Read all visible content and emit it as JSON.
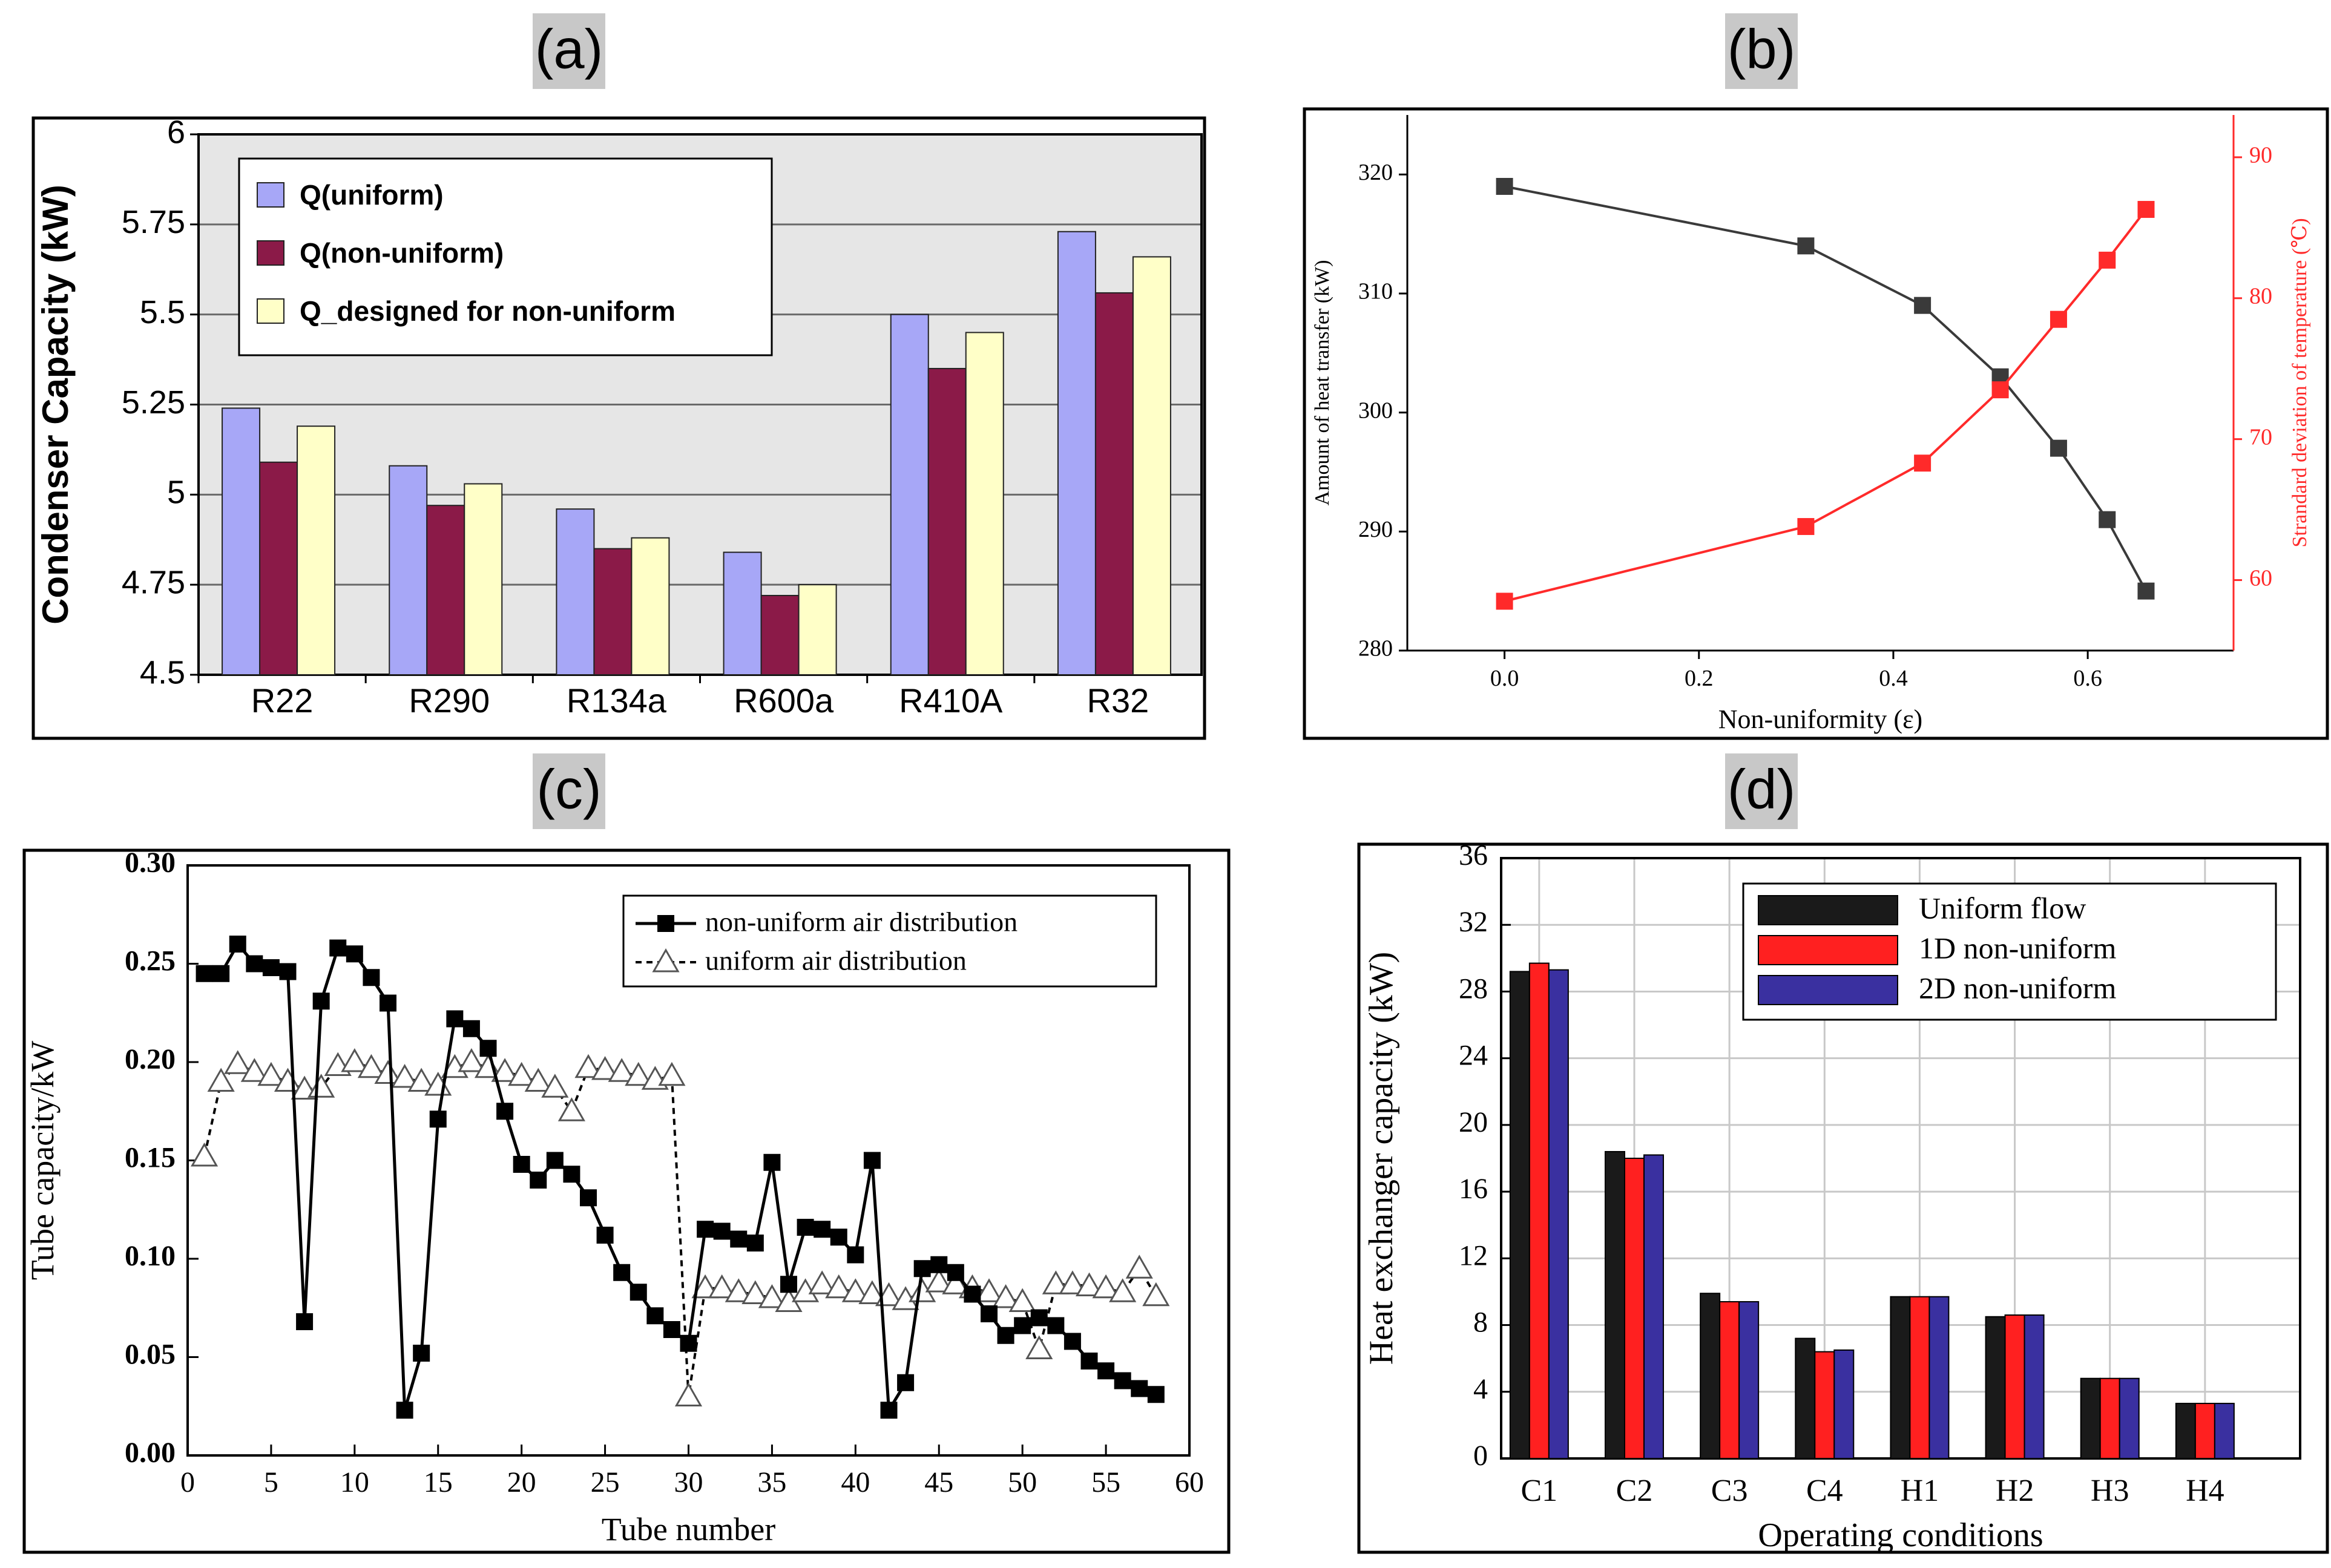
{
  "panels": {
    "a": {
      "label": "(a)"
    },
    "b": {
      "label": "(b)"
    },
    "c": {
      "label": "(c)"
    },
    "d": {
      "label": "(d)"
    }
  },
  "colors": {
    "label_bg": "#c8c8c8",
    "a_uniform": "#a7a7f7",
    "a_nonuniform": "#8b1a48",
    "a_designed": "#ffffc8",
    "a_plot_bg": "#e6e6e6",
    "b_heat": "#3a3a3a",
    "b_std": "#ff2a2a",
    "d_uniform": "#1a1a1a",
    "d_1d": "#ff2020",
    "d_2d": "#3a30a0"
  },
  "chart_data": [
    {
      "id": "a",
      "type": "bar",
      "title": "",
      "xlabel": "",
      "ylabel": "Condenser Capacity (kW)",
      "ylim": [
        4.5,
        6
      ],
      "yticks": [
        "4.5",
        "4.75",
        "5",
        "5.25",
        "5.5",
        "5.75",
        "6"
      ],
      "categories": [
        "R22",
        "R290",
        "R134a",
        "R600a",
        "R410A",
        "R32"
      ],
      "series": [
        {
          "name": "Q(uniform)",
          "values": [
            5.24,
            5.08,
            4.96,
            4.84,
            5.5,
            5.73
          ]
        },
        {
          "name": "Q(non-uniform)",
          "values": [
            5.09,
            4.97,
            4.85,
            4.72,
            5.35,
            5.56
          ]
        },
        {
          "name": "Q_designed for non-uniform",
          "values": [
            5.19,
            5.03,
            4.88,
            4.75,
            5.45,
            5.66
          ]
        }
      ],
      "legend_position": "top-left",
      "grid": "horizontal"
    },
    {
      "id": "b",
      "type": "line",
      "title": "",
      "xlabel": "Non-uniformity (ε)",
      "ylabel": "Amount of heat transfer (kW)",
      "ylabel_right": "Strandard deviation of temperature (℃)",
      "xlim": [
        -0.1,
        0.75
      ],
      "ylim": [
        280,
        325
      ],
      "ylim_right": [
        55,
        93
      ],
      "xticks": [
        "0.0",
        "0.2",
        "0.4",
        "0.6"
      ],
      "yticks": [
        "280",
        "290",
        "300",
        "310",
        "320"
      ],
      "yticks_right": [
        "60",
        "70",
        "80",
        "90"
      ],
      "series": [
        {
          "axis": "left",
          "x": [
            0.0,
            0.31,
            0.43,
            0.51,
            0.57,
            0.62,
            0.66
          ],
          "values": [
            319,
            314,
            309,
            303,
            297,
            291,
            285
          ]
        },
        {
          "axis": "right",
          "x": [
            0.0,
            0.31,
            0.43,
            0.51,
            0.57,
            0.62,
            0.66
          ],
          "values": [
            58.5,
            63.8,
            68.3,
            73.5,
            78.5,
            82.7,
            86.3
          ]
        }
      ],
      "grid": false
    },
    {
      "id": "c",
      "type": "line",
      "title": "",
      "xlabel": "Tube number",
      "ylabel": "Tube capacity/kW",
      "xlim": [
        0,
        60
      ],
      "ylim": [
        0,
        0.3
      ],
      "xticks": [
        "0",
        "5",
        "10",
        "15",
        "20",
        "25",
        "30",
        "35",
        "40",
        "45",
        "50",
        "55",
        "60"
      ],
      "yticks": [
        "0.00",
        "0.05",
        "0.10",
        "0.15",
        "0.20",
        "0.25",
        "0.30"
      ],
      "series": [
        {
          "name": "non-uniform air distribution",
          "x": [
            1,
            2,
            3,
            4,
            5,
            6,
            7,
            8,
            9,
            10,
            11,
            12,
            13,
            14,
            15,
            16,
            17,
            18,
            19,
            20,
            21,
            22,
            23,
            24,
            25,
            26,
            27,
            28,
            29,
            30,
            31,
            32,
            33,
            34,
            35,
            36,
            37,
            38,
            39,
            40,
            41,
            42,
            43,
            44,
            45,
            46,
            47,
            48,
            49,
            50,
            51,
            52,
            53,
            54,
            55,
            56,
            57,
            58
          ],
          "values": [
            0.245,
            0.245,
            0.26,
            0.25,
            0.248,
            0.246,
            0.068,
            0.231,
            0.258,
            0.255,
            0.243,
            0.23,
            0.023,
            0.052,
            0.171,
            0.222,
            0.217,
            0.207,
            0.175,
            0.148,
            0.14,
            0.15,
            0.143,
            0.131,
            0.112,
            0.093,
            0.083,
            0.071,
            0.064,
            0.057,
            0.115,
            0.114,
            0.11,
            0.108,
            0.149,
            0.087,
            0.116,
            0.115,
            0.111,
            0.102,
            0.15,
            0.023,
            0.037,
            0.095,
            0.097,
            0.093,
            0.082,
            0.072,
            0.061,
            0.066,
            0.07,
            0.066,
            0.058,
            0.048,
            0.043,
            0.038,
            0.034,
            0.031
          ]
        },
        {
          "name": "uniform air distribution",
          "x": [
            1,
            2,
            3,
            4,
            5,
            6,
            7,
            8,
            9,
            10,
            11,
            12,
            13,
            14,
            15,
            16,
            17,
            18,
            19,
            20,
            21,
            22,
            23,
            24,
            25,
            26,
            27,
            28,
            29,
            30,
            31,
            32,
            33,
            34,
            35,
            36,
            37,
            38,
            39,
            40,
            41,
            42,
            43,
            44,
            45,
            46,
            47,
            48,
            49,
            50,
            51,
            52,
            53,
            54,
            55,
            56,
            57,
            58
          ],
          "values": [
            0.152,
            0.19,
            0.199,
            0.195,
            0.193,
            0.19,
            0.186,
            0.187,
            0.198,
            0.2,
            0.197,
            0.194,
            0.192,
            0.19,
            0.188,
            0.197,
            0.2,
            0.197,
            0.195,
            0.193,
            0.19,
            0.187,
            0.175,
            0.197,
            0.196,
            0.195,
            0.193,
            0.191,
            0.193,
            0.03,
            0.085,
            0.085,
            0.083,
            0.082,
            0.08,
            0.078,
            0.083,
            0.087,
            0.085,
            0.083,
            0.082,
            0.081,
            0.079,
            0.083,
            0.088,
            0.087,
            0.085,
            0.083,
            0.08,
            0.078,
            0.054,
            0.087,
            0.087,
            0.086,
            0.085,
            0.083,
            0.095,
            0.081
          ]
        }
      ],
      "legend_position": "top-right",
      "grid": false
    },
    {
      "id": "d",
      "type": "bar",
      "title": "",
      "xlabel": "Operating conditions",
      "ylabel": "Heat exchanger capacity (kW)",
      "ylim": [
        0,
        36
      ],
      "yticks": [
        "0",
        "4",
        "8",
        "12",
        "16",
        "20",
        "24",
        "28",
        "32",
        "36"
      ],
      "categories": [
        "C1",
        "C2",
        "C3",
        "C4",
        "H1",
        "H2",
        "H3",
        "H4"
      ],
      "series": [
        {
          "name": "Uniform flow",
          "values": [
            29.2,
            18.4,
            9.9,
            7.2,
            9.7,
            8.5,
            4.8,
            3.3
          ]
        },
        {
          "name": "1D non-uniform",
          "values": [
            29.7,
            18.0,
            9.4,
            6.4,
            9.7,
            8.6,
            4.8,
            3.3
          ]
        },
        {
          "name": "2D non-uniform",
          "values": [
            29.3,
            18.2,
            9.4,
            6.5,
            9.7,
            8.6,
            4.8,
            3.3
          ]
        }
      ],
      "legend_position": "top-right",
      "grid": true
    }
  ]
}
